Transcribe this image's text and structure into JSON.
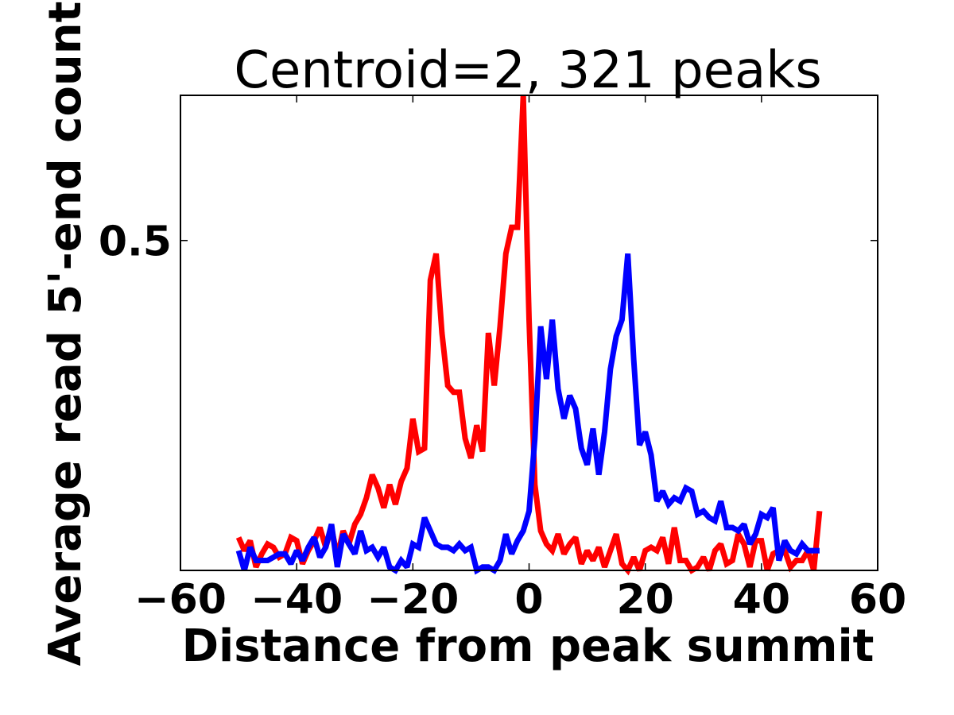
{
  "chart_data": {
    "type": "line",
    "title": "Centroid=2, 321 peaks",
    "xlabel": "Distance from peak summit",
    "ylabel": "Average read 5'-end count",
    "xlim": [
      -60,
      60
    ],
    "ylim": [
      0.0,
      0.72
    ],
    "xticks": [
      -60,
      -40,
      -20,
      0,
      20,
      40,
      60
    ],
    "xtick_labels": [
      "−60",
      "−40",
      "−20",
      "0",
      "20",
      "40",
      "60"
    ],
    "yticks": [
      0.5
    ],
    "ytick_labels": [
      "0.5"
    ],
    "grid": false,
    "legend": "none",
    "series": [
      {
        "color": "#ff0000",
        "x": [
          -50,
          -49,
          -48,
          -47,
          -46,
          -45,
          -44,
          -43,
          -42,
          -41,
          -40,
          -39,
          -38,
          -37,
          -36,
          -35,
          -34,
          -33,
          -32,
          -31,
          -30,
          -29,
          -28,
          -27,
          -26,
          -25,
          -24,
          -23,
          -22,
          -21,
          -20,
          -19,
          -18,
          -17,
          -16,
          -15,
          -14,
          -13,
          -12,
          -11,
          -10,
          -9,
          -8,
          -7,
          -6,
          -5,
          -4,
          -3,
          -2,
          -1,
          0,
          1,
          2,
          3,
          4,
          5,
          6,
          7,
          8,
          9,
          10,
          11,
          12,
          13,
          14,
          15,
          16,
          17,
          18,
          19,
          20,
          21,
          22,
          23,
          24,
          25,
          26,
          27,
          28,
          29,
          30,
          31,
          32,
          33,
          34,
          35,
          36,
          37,
          38,
          39,
          40,
          41,
          42,
          43,
          44,
          45,
          46,
          47,
          48,
          49,
          50
        ],
        "values": [
          0.05,
          0.03,
          0.045,
          0.005,
          0.025,
          0.04,
          0.035,
          0.02,
          0.025,
          0.05,
          0.045,
          0.01,
          0.03,
          0.045,
          0.065,
          0.035,
          0.065,
          0.02,
          0.06,
          0.04,
          0.07,
          0.085,
          0.11,
          0.145,
          0.125,
          0.095,
          0.13,
          0.1,
          0.135,
          0.155,
          0.23,
          0.18,
          0.185,
          0.44,
          0.48,
          0.36,
          0.28,
          0.27,
          0.27,
          0.2,
          0.17,
          0.22,
          0.18,
          0.36,
          0.28,
          0.37,
          0.48,
          0.52,
          0.52,
          0.72,
          0.38,
          0.13,
          0.06,
          0.04,
          0.03,
          0.055,
          0.025,
          0.04,
          0.05,
          0.01,
          0.03,
          0.015,
          0.035,
          0.005,
          0.03,
          0.055,
          0.01,
          0.0,
          0.02,
          0.0,
          0.03,
          0.035,
          0.03,
          0.05,
          0.01,
          0.065,
          0.015,
          0.015,
          0.0,
          0.005,
          0.02,
          0.0,
          0.03,
          0.04,
          0.01,
          0.015,
          0.055,
          0.04,
          0.005,
          0.045,
          0.045,
          0.0,
          0.025,
          0.03,
          0.03,
          0.005,
          0.015,
          0.015,
          0.03,
          0.0,
          0.09
        ]
      },
      {
        "color": "#0000ff",
        "x": [
          -50,
          -49,
          -48,
          -47,
          -46,
          -45,
          -44,
          -43,
          -42,
          -41,
          -40,
          -39,
          -38,
          -37,
          -36,
          -35,
          -34,
          -33,
          -32,
          -31,
          -30,
          -29,
          -28,
          -27,
          -26,
          -25,
          -24,
          -23,
          -22,
          -21,
          -20,
          -19,
          -18,
          -17,
          -16,
          -15,
          -14,
          -13,
          -12,
          -11,
          -10,
          -9,
          -8,
          -7,
          -6,
          -5,
          -4,
          -3,
          -2,
          -1,
          0,
          1,
          2,
          3,
          4,
          5,
          6,
          7,
          8,
          9,
          10,
          11,
          12,
          13,
          14,
          15,
          16,
          17,
          18,
          19,
          20,
          21,
          22,
          23,
          24,
          25,
          26,
          27,
          28,
          29,
          30,
          31,
          32,
          33,
          34,
          35,
          36,
          37,
          38,
          39,
          40,
          41,
          42,
          43,
          44,
          45,
          46,
          47,
          48,
          49,
          50
        ],
        "values": [
          0.03,
          0.0,
          0.035,
          0.015,
          0.015,
          0.015,
          0.02,
          0.025,
          0.025,
          0.01,
          0.03,
          0.015,
          0.035,
          0.05,
          0.02,
          0.035,
          0.07,
          0.005,
          0.055,
          0.04,
          0.025,
          0.06,
          0.03,
          0.035,
          0.02,
          0.035,
          0.005,
          0.0,
          0.015,
          0.005,
          0.04,
          0.035,
          0.08,
          0.06,
          0.04,
          0.035,
          0.035,
          0.03,
          0.04,
          0.03,
          0.035,
          0.0,
          0.005,
          0.005,
          0.0,
          0.015,
          0.055,
          0.025,
          0.045,
          0.06,
          0.09,
          0.2,
          0.37,
          0.29,
          0.38,
          0.275,
          0.23,
          0.265,
          0.245,
          0.185,
          0.16,
          0.215,
          0.145,
          0.21,
          0.305,
          0.355,
          0.38,
          0.48,
          0.32,
          0.19,
          0.21,
          0.175,
          0.105,
          0.12,
          0.1,
          0.11,
          0.105,
          0.125,
          0.12,
          0.085,
          0.09,
          0.08,
          0.075,
          0.105,
          0.065,
          0.065,
          0.06,
          0.07,
          0.04,
          0.055,
          0.085,
          0.08,
          0.095,
          0.015,
          0.045,
          0.03,
          0.025,
          0.04,
          0.03,
          0.03,
          0.03
        ]
      }
    ]
  }
}
